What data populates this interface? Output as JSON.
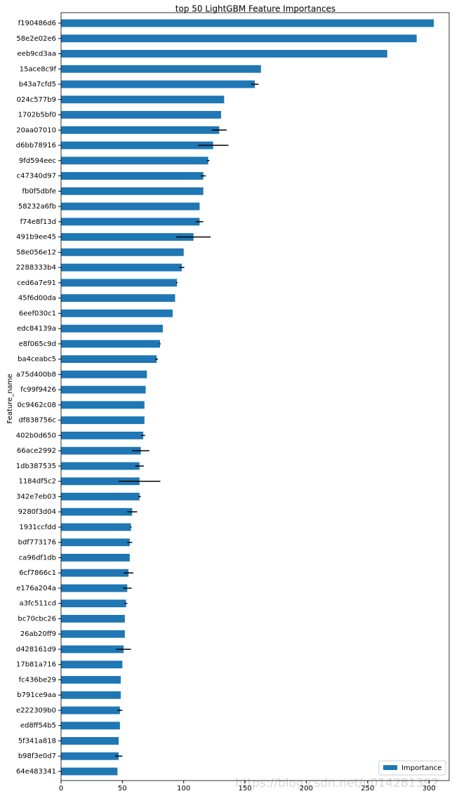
{
  "chart_data": {
    "type": "barh",
    "title": "top 50 LightGBM Feature Importances",
    "ylabel": "Feature_name",
    "watermark": "https://blog.csdn.net/u014281392",
    "categories": [
      "f190486d6",
      "58e2e02e6",
      "eeb9cd3aa",
      "15ace8c9f",
      "b43a7cfd5",
      "024c577b9",
      "1702b5bf0",
      "20aa07010",
      "d6bb78916",
      "9fd594eec",
      "c47340d97",
      "fb0f5dbfe",
      "58232a6fb",
      "f74e8f13d",
      "491b9ee45",
      "58e056e12",
      "2288333b4",
      "ced6a7e91",
      "45f6d00da",
      "6eef030c1",
      "edc84139a",
      "e8f065c9d",
      "ba4ceabc5",
      "a75d400b8",
      "fc99f9426",
      "0c9462c08",
      "df838756c",
      "402b0d650",
      "66ace2992",
      "1db387535",
      "1184df5c2",
      "342e7eb03",
      "9280f3d04",
      "1931ccfdd",
      "bdf773176",
      "ca96df1db",
      "6cf7866c1",
      "e176a204a",
      "a3fc511cd",
      "bc70cbc26",
      "26ab20ff9",
      "d428161d9",
      "17b81a716",
      "fc436be29",
      "b791ce9aa",
      "e222309b0",
      "ed8ff54b5",
      "5f341a818",
      "b98f3e0d7",
      "64e483341"
    ],
    "series": [
      {
        "name": "Importance",
        "color": "#1f77b4",
        "values": [
          304,
          290,
          266,
          163,
          158,
          133,
          130.5,
          129,
          124,
          120,
          116,
          116,
          113,
          113,
          108,
          100,
          98.5,
          94.5,
          93,
          91,
          83,
          80.7,
          78,
          70,
          69,
          68,
          68,
          67,
          65,
          64,
          64,
          64,
          58,
          57,
          56,
          56,
          55,
          54,
          53,
          52,
          52,
          51,
          50,
          48.7,
          48.7,
          48,
          48,
          47,
          47,
          46
        ],
        "errors": [
          0,
          0,
          0,
          0,
          3,
          0,
          0,
          6,
          12.5,
          1,
          2,
          0,
          0,
          3,
          14,
          0,
          2,
          0.5,
          0,
          0,
          0,
          0.5,
          1,
          0,
          0,
          0,
          0,
          1.5,
          7,
          3.5,
          17,
          1,
          4,
          0.5,
          2,
          0,
          4,
          3.5,
          1,
          0,
          0,
          6,
          0,
          0,
          0,
          2,
          0,
          0,
          3,
          0
        ]
      }
    ],
    "xlim": [
      0,
      316.5
    ],
    "xticks": [
      0,
      50,
      100,
      150,
      200,
      250,
      300
    ],
    "legend": "lower right"
  }
}
